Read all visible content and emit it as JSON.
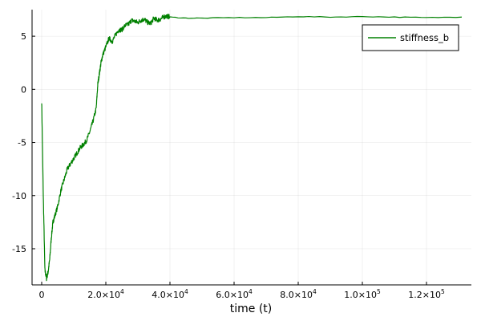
{
  "chart_data": {
    "type": "line",
    "xlabel": "time (t)",
    "ylabel": "",
    "xlim": [
      -3000,
      134000
    ],
    "ylim": [
      -18.4,
      7.5
    ],
    "grid": true,
    "legend_position": "top-right",
    "x_ticks": [
      {
        "value": 0,
        "mantissa": "0",
        "exponent": ""
      },
      {
        "value": 20000,
        "mantissa": "2.0×10",
        "exponent": "4"
      },
      {
        "value": 40000,
        "mantissa": "4.0×10",
        "exponent": "4"
      },
      {
        "value": 60000,
        "mantissa": "6.0×10",
        "exponent": "4"
      },
      {
        "value": 80000,
        "mantissa": "8.0×10",
        "exponent": "4"
      },
      {
        "value": 100000,
        "mantissa": "1.0×10",
        "exponent": "5"
      },
      {
        "value": 120000,
        "mantissa": "1.2×10",
        "exponent": "5"
      }
    ],
    "y_ticks": [
      {
        "value": 5,
        "label": "5"
      },
      {
        "value": 0,
        "label": "0"
      },
      {
        "value": -5,
        "label": "-5"
      },
      {
        "value": -10,
        "label": "-10"
      },
      {
        "value": -15,
        "label": "-15"
      }
    ],
    "series": [
      {
        "name": "stiffness_b",
        "color": "#008000",
        "x": [
          0,
          500,
          1000,
          1500,
          2000,
          2500,
          3000,
          3500,
          4000,
          5000,
          6000,
          7000,
          8000,
          9000,
          10000,
          11000,
          12000,
          13000,
          14000,
          15000,
          16000,
          17000,
          17500,
          18000,
          18500,
          19000,
          20000,
          21000,
          22000,
          23000,
          24000,
          25000,
          26000,
          27000,
          28000,
          29000,
          30000,
          31000,
          32000,
          33000,
          34000,
          35000,
          36000,
          37000,
          38000,
          39000,
          40000,
          45000,
          50000,
          60000,
          70000,
          80000,
          90000,
          100000,
          110000,
          120000,
          131000
        ],
        "y": [
          -1.1,
          -10,
          -17,
          -17.8,
          -17.2,
          -16,
          -14,
          -12.5,
          -12,
          -11,
          -9.5,
          -8.5,
          -7.5,
          -7,
          -6.5,
          -6,
          -5.5,
          -5.2,
          -4.8,
          -4,
          -3,
          -1.8,
          0.5,
          1.5,
          2.5,
          3.2,
          4,
          4.8,
          4.5,
          5.1,
          5.6,
          5.6,
          6.0,
          6.1,
          6.5,
          6.4,
          6.3,
          6.5,
          6.6,
          6.3,
          6.2,
          6.7,
          6.5,
          6.6,
          6.8,
          6.9,
          6.8,
          6.7,
          6.7,
          6.75,
          6.75,
          6.85,
          6.8,
          6.85,
          6.8,
          6.75,
          6.8
        ]
      }
    ]
  }
}
